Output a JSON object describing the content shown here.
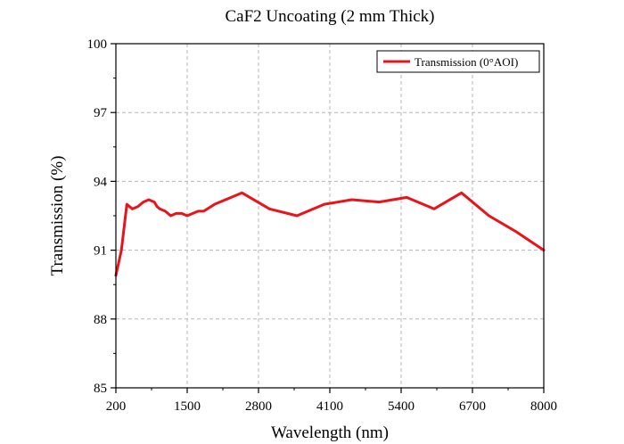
{
  "chart_data": {
    "type": "line",
    "title": "CaF2 Uncoating (2 mm  Thick)",
    "xlabel": "Wavelength (nm)",
    "ylabel": "Transmission (%)",
    "xlim": [
      200,
      8000
    ],
    "ylim": [
      85,
      100
    ],
    "xticks": [
      200,
      1500,
      2800,
      4100,
      5400,
      6700,
      8000
    ],
    "yticks": [
      85,
      88,
      91,
      94,
      97,
      100
    ],
    "grid": true,
    "legend_position": "top-right",
    "series": [
      {
        "name": "Transmission (0°AOI)",
        "color": "#e8141a",
        "x": [
          200,
          300,
          400,
          500,
          600,
          700,
          800,
          900,
          950,
          1000,
          1100,
          1200,
          1300,
          1400,
          1500,
          1600,
          1700,
          1800,
          2000,
          2500,
          3000,
          3500,
          4000,
          4500,
          5000,
          5500,
          6000,
          6500,
          7000,
          7500,
          8000
        ],
        "values": [
          89.9,
          91.0,
          93.0,
          92.8,
          92.9,
          93.1,
          93.2,
          93.1,
          92.9,
          92.8,
          92.7,
          92.5,
          92.6,
          92.6,
          92.5,
          92.6,
          92.7,
          92.7,
          93.0,
          93.5,
          92.8,
          92.5,
          93.0,
          93.2,
          93.1,
          93.3,
          92.8,
          93.5,
          92.5,
          91.8,
          91.0
        ]
      }
    ]
  }
}
